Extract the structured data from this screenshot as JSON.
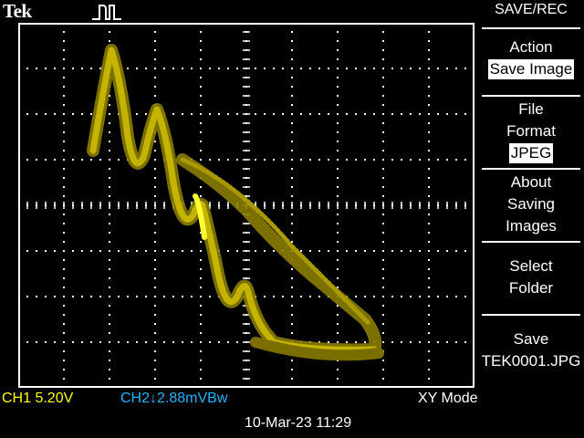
{
  "brand": "Tek",
  "icons": {
    "trigger": "pulse-icon"
  },
  "menu": {
    "title": "SAVE/REC",
    "items": [
      {
        "lines": [
          "Action"
        ],
        "selected": "Save Image"
      },
      {
        "lines": [
          "File",
          "Format"
        ],
        "selected": "JPEG"
      },
      {
        "lines": [
          "About",
          "Saving",
          "Images"
        ]
      },
      {
        "lines": [
          "Select",
          "Folder"
        ]
      },
      {
        "lines": [
          "Save",
          "TEK0001.JPG"
        ]
      }
    ]
  },
  "status": {
    "ch1": "CH1  5.20V",
    "ch2": "CH2↓2.88mVBw",
    "mode": "XY Mode"
  },
  "datetime": "10-Mar-23 11:29",
  "colors": {
    "ch1": "#ffff00",
    "ch2": "#21b5ff",
    "trace": "#b0a000",
    "trace_bright": "#ffff20"
  }
}
